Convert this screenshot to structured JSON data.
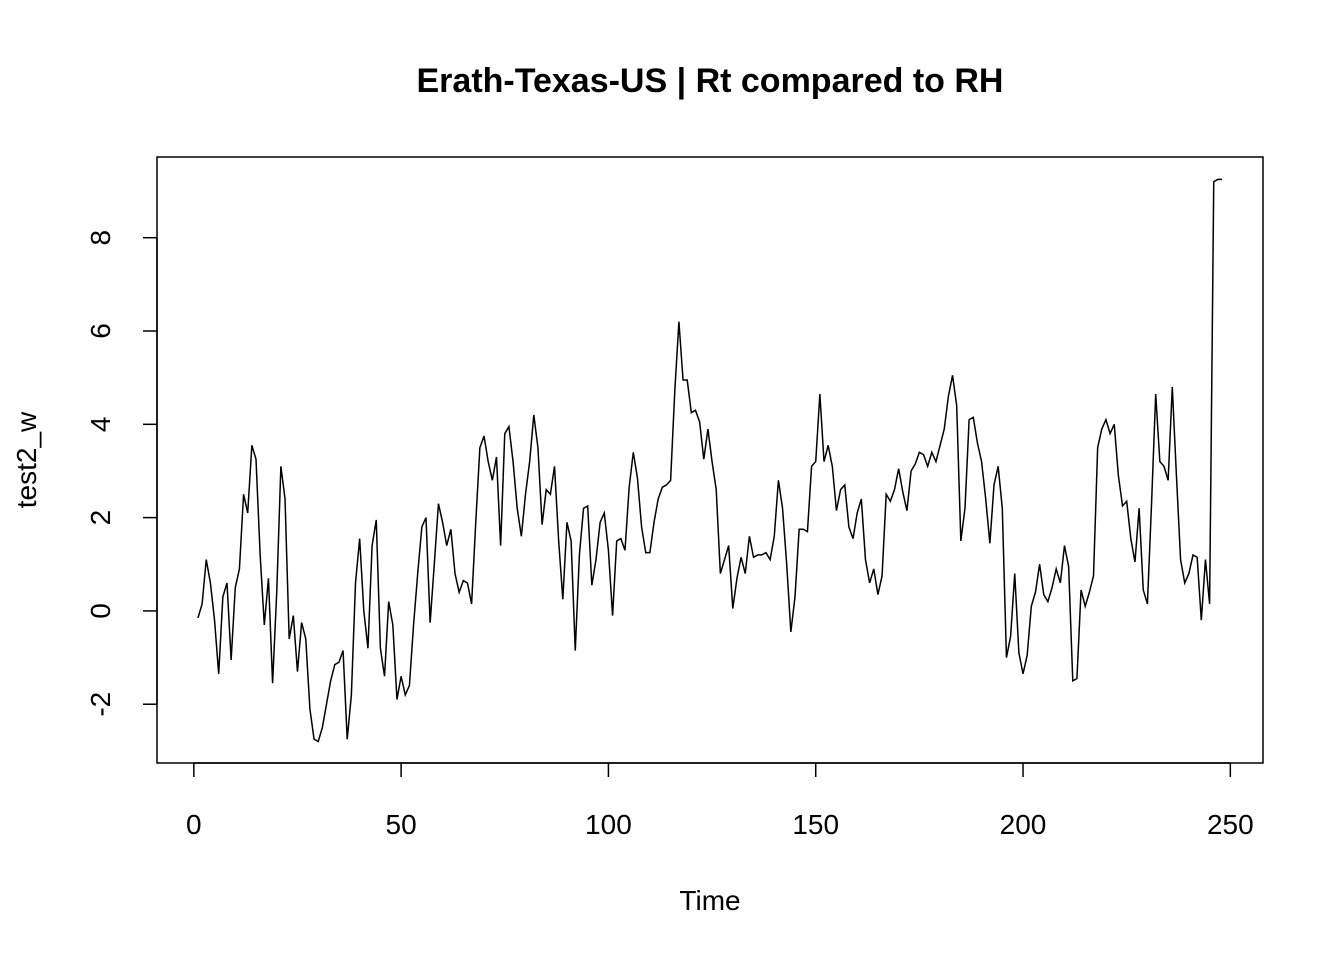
{
  "chart_data": {
    "type": "line",
    "title": "Erath-Texas-US | Rt compared to RH",
    "x_label": "Time",
    "y_label": "test2_w",
    "x": [
      1,
      2,
      3,
      4,
      5,
      6,
      7,
      8,
      9,
      10,
      11,
      12,
      13,
      14,
      15,
      16,
      17,
      18,
      19,
      20,
      21,
      22,
      23,
      24,
      25,
      26,
      27,
      28,
      29,
      30,
      31,
      32,
      33,
      34,
      35,
      36,
      37,
      38,
      39,
      40,
      41,
      42,
      43,
      44,
      45,
      46,
      47,
      48,
      49,
      50,
      51,
      52,
      53,
      54,
      55,
      56,
      57,
      58,
      59,
      60,
      61,
      62,
      63,
      64,
      65,
      66,
      67,
      68,
      69,
      70,
      71,
      72,
      73,
      74,
      75,
      76,
      77,
      78,
      79,
      80,
      81,
      82,
      83,
      84,
      85,
      86,
      87,
      88,
      89,
      90,
      91,
      92,
      93,
      94,
      95,
      96,
      97,
      98,
      99,
      100,
      101,
      102,
      103,
      104,
      105,
      106,
      107,
      108,
      109,
      110,
      111,
      112,
      113,
      114,
      115,
      116,
      117,
      118,
      119,
      120,
      121,
      122,
      123,
      124,
      125,
      126,
      127,
      128,
      129,
      130,
      131,
      132,
      133,
      134,
      135,
      136,
      137,
      138,
      139,
      140,
      141,
      142,
      143,
      144,
      145,
      146,
      147,
      148,
      149,
      150,
      151,
      152,
      153,
      154,
      155,
      156,
      157,
      158,
      159,
      160,
      161,
      162,
      163,
      164,
      165,
      166,
      167,
      168,
      169,
      170,
      171,
      172,
      173,
      174,
      175,
      176,
      177,
      178,
      179,
      180,
      181,
      182,
      183,
      184,
      185,
      186,
      187,
      188,
      189,
      190,
      191,
      192,
      193,
      194,
      195,
      196,
      197,
      198,
      199,
      200,
      201,
      202,
      203,
      204,
      205,
      206,
      207,
      208,
      209,
      210,
      211,
      212,
      213,
      214,
      215,
      216,
      217,
      218,
      219,
      220,
      221,
      222,
      223,
      224,
      225,
      226,
      227,
      228,
      229,
      230,
      231,
      232,
      233,
      234,
      235,
      236,
      237,
      238,
      239,
      240,
      241,
      242,
      243,
      244,
      245,
      246,
      247,
      248
    ],
    "series": [
      {
        "name": "test2_w",
        "color": "#000000",
        "values": [
          -0.15,
          0.15,
          1.1,
          0.6,
          -0.2,
          -1.35,
          0.3,
          0.6,
          -1.05,
          0.5,
          0.9,
          2.5,
          2.1,
          3.55,
          3.25,
          1.2,
          -0.3,
          0.7,
          -1.55,
          0.4,
          3.1,
          2.4,
          -0.6,
          -0.1,
          -1.3,
          -0.25,
          -0.6,
          -2.1,
          -2.75,
          -2.8,
          -2.5,
          -2.0,
          -1.5,
          -1.15,
          -1.1,
          -0.85,
          -2.75,
          -1.8,
          0.6,
          1.55,
          0.0,
          -0.8,
          1.4,
          1.95,
          -0.8,
          -1.4,
          0.2,
          -0.3,
          -1.9,
          -1.4,
          -1.8,
          -1.6,
          -0.3,
          0.8,
          1.8,
          2.0,
          -0.25,
          1.0,
          2.3,
          1.9,
          1.4,
          1.75,
          0.8,
          0.4,
          0.65,
          0.6,
          0.15,
          1.9,
          3.5,
          3.75,
          3.2,
          2.8,
          3.3,
          1.4,
          3.8,
          3.95,
          3.2,
          2.2,
          1.6,
          2.5,
          3.2,
          4.2,
          3.5,
          1.85,
          2.6,
          2.5,
          3.1,
          1.5,
          0.25,
          1.9,
          1.5,
          -0.85,
          1.2,
          2.2,
          2.25,
          0.55,
          1.1,
          1.9,
          2.1,
          1.3,
          -0.1,
          1.5,
          1.55,
          1.3,
          2.65,
          3.4,
          2.85,
          1.8,
          1.25,
          1.25,
          1.9,
          2.4,
          2.65,
          2.7,
          2.8,
          4.7,
          6.2,
          4.95,
          4.95,
          4.25,
          4.3,
          4.05,
          3.25,
          3.9,
          3.2,
          2.6,
          0.8,
          1.1,
          1.4,
          0.05,
          0.7,
          1.15,
          0.8,
          1.6,
          1.15,
          1.2,
          1.2,
          1.25,
          1.1,
          1.6,
          2.8,
          2.2,
          1.0,
          -0.45,
          0.3,
          1.75,
          1.75,
          1.7,
          3.1,
          3.2,
          4.65,
          3.2,
          3.55,
          3.1,
          2.15,
          2.6,
          2.7,
          1.8,
          1.55,
          2.1,
          2.4,
          1.1,
          0.6,
          0.9,
          0.35,
          0.75,
          2.5,
          2.35,
          2.6,
          3.05,
          2.55,
          2.15,
          3.0,
          3.15,
          3.4,
          3.35,
          3.1,
          3.4,
          3.2,
          3.55,
          3.9,
          4.6,
          5.05,
          4.4,
          1.5,
          2.2,
          4.1,
          4.15,
          3.6,
          3.2,
          2.4,
          1.45,
          2.7,
          3.1,
          2.2,
          -1.0,
          -0.55,
          0.8,
          -0.9,
          -1.35,
          -0.95,
          0.1,
          0.4,
          1.0,
          0.35,
          0.2,
          0.5,
          0.9,
          0.6,
          1.4,
          0.95,
          -1.5,
          -1.45,
          0.45,
          0.1,
          0.4,
          0.75,
          3.5,
          3.9,
          4.1,
          3.8,
          4.0,
          2.9,
          2.25,
          2.35,
          1.55,
          1.05,
          2.2,
          0.45,
          0.15,
          2.3,
          4.65,
          3.2,
          3.1,
          2.8,
          4.8,
          2.9,
          1.1,
          0.6,
          0.8,
          1.2,
          1.15,
          -0.2,
          1.1,
          0.15,
          9.2,
          9.25,
          9.25
        ]
      }
    ],
    "xlim": [
      -8.88,
      257.88
    ],
    "xticks": [
      0,
      50,
      100,
      150,
      200,
      250
    ],
    "ylim": [
      -3.26,
      9.73
    ],
    "yticks": [
      -2,
      0,
      2,
      4,
      6,
      8
    ],
    "grid": false
  }
}
